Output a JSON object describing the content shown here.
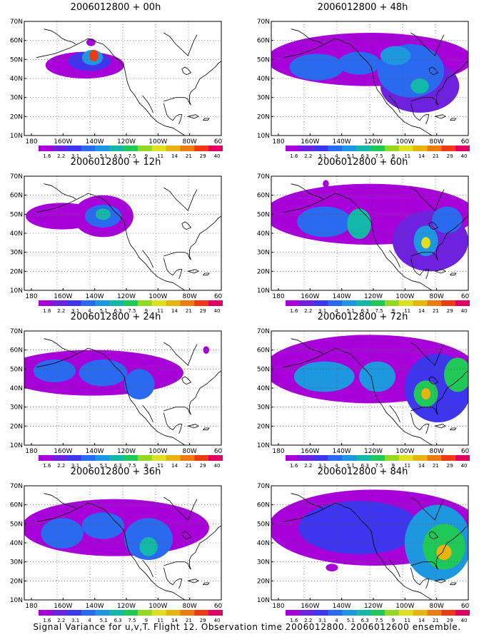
{
  "chart_data": {
    "type": "heatmap",
    "caption": "Signal Variance for u,v,T. Flight 12. Observation time 2006012800. 2006012600 ensemble.",
    "lon_labels": [
      "180",
      "160W",
      "140W",
      "120W",
      "100W",
      "80W",
      "60W"
    ],
    "lat_labels": [
      "10N",
      "20N",
      "30N",
      "40N",
      "50N",
      "60N",
      "70N"
    ],
    "lon_range": [
      170,
      300
    ],
    "lat_range": [
      10,
      70
    ],
    "grid": "dotted",
    "colorbar_levels": [
      "1.6",
      "2.2",
      "3.1",
      "4",
      "5.1",
      "6.3",
      "7.5",
      "9",
      "11",
      "14",
      "21",
      "29",
      "40"
    ],
    "colorbar_colors": [
      "#a800d8",
      "#6e22e0",
      "#3d36ee",
      "#2a6af0",
      "#1d98e0",
      "#14b8a8",
      "#20c858",
      "#94d820",
      "#e0e020",
      "#e8b410",
      "#ec7c10",
      "#ee3a14",
      "#e00064"
    ],
    "panels": [
      {
        "title": "2006012800 + 00h",
        "blobs": [
          {
            "lon": 210,
            "lat": 47,
            "rx": 26,
            "ry": 7,
            "level": 0
          },
          {
            "lon": 213,
            "lat": 49,
            "rx": 14,
            "ry": 5,
            "level": 2
          },
          {
            "lon": 215,
            "lat": 51,
            "rx": 7,
            "ry": 4,
            "level": 4
          },
          {
            "lon": 216,
            "lat": 52,
            "rx": 3,
            "ry": 3,
            "level": 11
          },
          {
            "lon": 214,
            "lat": 59,
            "rx": 3,
            "ry": 2,
            "level": 0
          }
        ]
      },
      {
        "title": "2006012800 + 48h",
        "blobs": [
          {
            "lon": 235,
            "lat": 50,
            "rx": 68,
            "ry": 14,
            "level": 0
          },
          {
            "lon": 268,
            "lat": 36,
            "rx": 26,
            "ry": 14,
            "level": 1
          },
          {
            "lon": 200,
            "lat": 46,
            "rx": 18,
            "ry": 7,
            "level": 3
          },
          {
            "lon": 228,
            "lat": 48,
            "rx": 14,
            "ry": 6,
            "level": 3
          },
          {
            "lon": 262,
            "lat": 44,
            "rx": 22,
            "ry": 14,
            "level": 3
          },
          {
            "lon": 268,
            "lat": 36,
            "rx": 6,
            "ry": 4,
            "level": 5
          },
          {
            "lon": 252,
            "lat": 52,
            "rx": 10,
            "ry": 5,
            "level": 4
          }
        ]
      },
      {
        "title": "2006012800 + 12h",
        "blobs": [
          {
            "lon": 195,
            "lat": 49,
            "rx": 24,
            "ry": 7,
            "level": 0
          },
          {
            "lon": 222,
            "lat": 49,
            "rx": 20,
            "ry": 11,
            "level": 0
          },
          {
            "lon": 222,
            "lat": 49,
            "rx": 12,
            "ry": 6,
            "level": 3
          },
          {
            "lon": 222,
            "lat": 50,
            "rx": 5,
            "ry": 3,
            "level": 5
          }
        ]
      },
      {
        "title": "2006012800 + 60h",
        "blobs": [
          {
            "lon": 235,
            "lat": 50,
            "rx": 70,
            "ry": 16,
            "level": 0
          },
          {
            "lon": 275,
            "lat": 36,
            "rx": 25,
            "ry": 16,
            "level": 1
          },
          {
            "lon": 205,
            "lat": 46,
            "rx": 18,
            "ry": 8,
            "level": 3
          },
          {
            "lon": 228,
            "lat": 45,
            "rx": 8,
            "ry": 8,
            "level": 5
          },
          {
            "lon": 272,
            "lat": 36,
            "rx": 8,
            "ry": 8,
            "level": 4
          },
          {
            "lon": 272,
            "lat": 35,
            "rx": 3,
            "ry": 3,
            "level": 8
          },
          {
            "lon": 286,
            "lat": 47,
            "rx": 10,
            "ry": 7,
            "level": 3
          },
          {
            "lon": 206,
            "lat": 66,
            "rx": 2,
            "ry": 2,
            "level": 0
          }
        ]
      },
      {
        "title": "2006012800 + 24h",
        "blobs": [
          {
            "lon": 215,
            "lat": 48,
            "rx": 60,
            "ry": 12,
            "level": 0
          },
          {
            "lon": 190,
            "lat": 49,
            "rx": 14,
            "ry": 6,
            "level": 3
          },
          {
            "lon": 222,
            "lat": 48,
            "rx": 16,
            "ry": 7,
            "level": 3
          },
          {
            "lon": 246,
            "lat": 42,
            "rx": 10,
            "ry": 8,
            "level": 3
          },
          {
            "lon": 290,
            "lat": 60,
            "rx": 2,
            "ry": 2,
            "level": 0
          }
        ]
      },
      {
        "title": "2006012800 + 72h",
        "blobs": [
          {
            "lon": 235,
            "lat": 50,
            "rx": 70,
            "ry": 18,
            "level": 0
          },
          {
            "lon": 280,
            "lat": 40,
            "rx": 22,
            "ry": 18,
            "level": 2
          },
          {
            "lon": 205,
            "lat": 46,
            "rx": 20,
            "ry": 8,
            "level": 4
          },
          {
            "lon": 240,
            "lat": 46,
            "rx": 12,
            "ry": 8,
            "level": 4
          },
          {
            "lon": 272,
            "lat": 37,
            "rx": 8,
            "ry": 7,
            "level": 6
          },
          {
            "lon": 272,
            "lat": 37,
            "rx": 3,
            "ry": 3,
            "level": 9
          },
          {
            "lon": 293,
            "lat": 47,
            "rx": 9,
            "ry": 9,
            "level": 6
          }
        ]
      },
      {
        "title": "2006012800 + 36h",
        "blobs": [
          {
            "lon": 230,
            "lat": 48,
            "rx": 62,
            "ry": 15,
            "level": 0
          },
          {
            "lon": 195,
            "lat": 45,
            "rx": 14,
            "ry": 8,
            "level": 3
          },
          {
            "lon": 222,
            "lat": 49,
            "rx": 14,
            "ry": 7,
            "level": 3
          },
          {
            "lon": 252,
            "lat": 42,
            "rx": 16,
            "ry": 11,
            "level": 3
          },
          {
            "lon": 252,
            "lat": 38,
            "rx": 6,
            "ry": 5,
            "level": 5
          }
        ]
      },
      {
        "title": "2006012800 + 84h",
        "blobs": [
          {
            "lon": 238,
            "lat": 48,
            "rx": 70,
            "ry": 20,
            "level": 0
          },
          {
            "lon": 228,
            "lat": 48,
            "rx": 40,
            "ry": 14,
            "level": 2
          },
          {
            "lon": 280,
            "lat": 40,
            "rx": 22,
            "ry": 20,
            "level": 4
          },
          {
            "lon": 284,
            "lat": 38,
            "rx": 14,
            "ry": 12,
            "level": 6
          },
          {
            "lon": 284,
            "lat": 35,
            "rx": 5,
            "ry": 4,
            "level": 9
          },
          {
            "lon": 210,
            "lat": 27,
            "rx": 4,
            "ry": 2,
            "level": 0
          }
        ]
      }
    ]
  }
}
